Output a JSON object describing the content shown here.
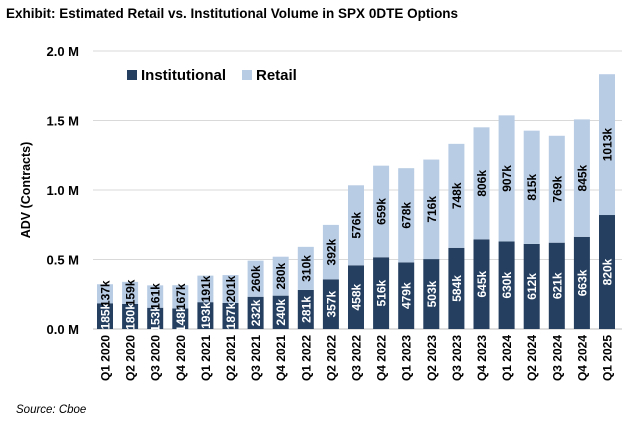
{
  "title": "Exhibit: Estimated Retail vs. Institutional Volume in SPX 0DTE Options",
  "source": "Source: Cboe",
  "chart_data": {
    "type": "bar",
    "stacked": true,
    "ylabel": "ADV (Contracts)",
    "xlabel": "",
    "ylim": [
      0,
      2000000
    ],
    "yticks": [
      0,
      500000,
      1000000,
      1500000,
      2000000
    ],
    "ytick_labels": [
      "0.0 M",
      "0.5 M",
      "1.0 M",
      "1.5 M",
      "2.0 M"
    ],
    "grid": true,
    "legend_placement": "top-left",
    "categories": [
      "Q1 2020",
      "Q2 2020",
      "Q3 2020",
      "Q4 2020",
      "Q1 2021",
      "Q2 2021",
      "Q3 2021",
      "Q4 2021",
      "Q1 2022",
      "Q2 2022",
      "Q3 2022",
      "Q4 2022",
      "Q1 2023",
      "Q2 2023",
      "Q3 2023",
      "Q4 2023",
      "Q1 2024",
      "Q2 2024",
      "Q3 2024",
      "Q4 2024",
      "Q1 2025"
    ],
    "series": [
      {
        "name": "Institutional",
        "color": "#243f60",
        "values": [
          185,
          180,
          153,
          148,
          193,
          187,
          232,
          240,
          281,
          357,
          458,
          516,
          479,
          503,
          584,
          645,
          630,
          612,
          621,
          663,
          820
        ],
        "labels": [
          "185k",
          "180k",
          "153k",
          "148k",
          "193k",
          "187k",
          "232k",
          "240k",
          "281k",
          "357k",
          "458k",
          "516k",
          "479k",
          "503k",
          "584k",
          "645k",
          "630k",
          "612k",
          "621k",
          "663k",
          "820k"
        ]
      },
      {
        "name": "Retail",
        "color": "#b8cce4",
        "values": [
          137,
          159,
          161,
          167,
          191,
          201,
          260,
          280,
          310,
          392,
          576,
          659,
          678,
          716,
          748,
          806,
          907,
          815,
          769,
          845,
          1013
        ],
        "labels": [
          "137k",
          "159k",
          "161k",
          "167k",
          "191k",
          "201k",
          "260k",
          "280k",
          "310k",
          "392k",
          "576k",
          "659k",
          "678k",
          "716k",
          "748k",
          "806k",
          "907k",
          "815k",
          "769k",
          "845k",
          "1013k"
        ]
      }
    ],
    "value_unit": "thousand contracts"
  }
}
